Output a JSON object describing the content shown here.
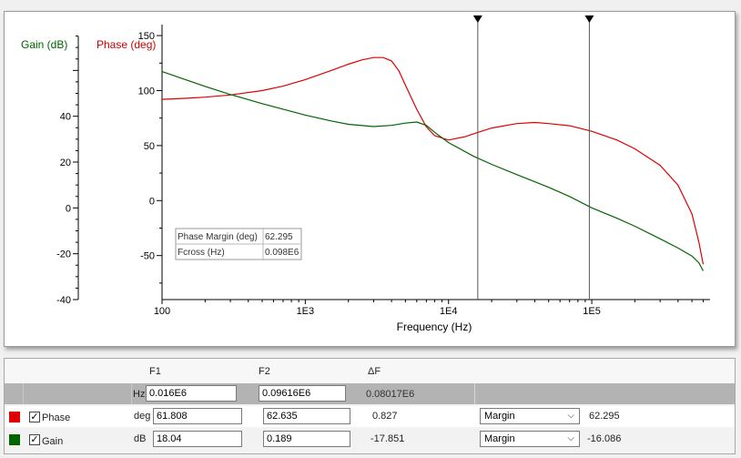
{
  "chart_data": {
    "type": "line",
    "title": "",
    "xlabel": "Frequency (Hz)",
    "x_scale": "log",
    "xlim": [
      100,
      650000
    ],
    "x_ticks": [
      100,
      1000,
      10000,
      100000
    ],
    "x_tick_labels": [
      "100",
      "1E3",
      "1E4",
      "1E5"
    ],
    "axes": {
      "gain": {
        "label": "Gain (dB)",
        "ylim": [
          -40,
          80
        ],
        "ticks": [
          -40,
          -20,
          0,
          20,
          40
        ],
        "color": "#006400"
      },
      "phase": {
        "label": "Phase (deg)",
        "ylim": [
          -90,
          160
        ],
        "ticks": [
          -50,
          0,
          50,
          100,
          150
        ],
        "color": "#cc0000"
      }
    },
    "series": [
      {
        "name": "Phase",
        "axis": "phase",
        "color": "#dd0000",
        "x": [
          100,
          150,
          200,
          300,
          500,
          700,
          1000,
          1500,
          2000,
          2500,
          3000,
          3500,
          4000,
          4500,
          5000,
          6000,
          7000,
          8000,
          10000,
          13000,
          16000,
          20000,
          30000,
          40000,
          50000,
          70000,
          100000,
          150000,
          200000,
          300000,
          400000,
          500000,
          560000,
          600000
        ],
        "y": [
          92,
          93,
          94,
          96,
          100,
          104,
          110,
          118,
          124,
          128,
          130,
          130,
          127,
          118,
          105,
          83,
          67,
          59,
          55,
          58,
          62,
          66,
          70,
          71,
          70,
          68,
          63,
          55,
          47,
          32,
          14,
          -12,
          -38,
          -58
        ]
      },
      {
        "name": "Gain",
        "axis": "gain",
        "color": "#006400",
        "x": [
          100,
          200,
          300,
          500,
          1000,
          1500,
          2000,
          3000,
          4000,
          5000,
          6000,
          7000,
          8000,
          10000,
          15000,
          20000,
          30000,
          50000,
          70000,
          100000,
          150000,
          200000,
          300000,
          400000,
          500000,
          560000,
          600000
        ],
        "y": [
          59.5,
          53,
          49.5,
          45.5,
          40.5,
          38,
          36.5,
          35.5,
          36,
          37,
          37.5,
          36,
          33,
          28.5,
          22.5,
          19,
          14.5,
          9,
          5,
          0,
          -4.5,
          -8,
          -13.5,
          -17.5,
          -21,
          -24,
          -27.5
        ]
      }
    ],
    "cursors": [
      {
        "x": 16000,
        "label": "F1"
      },
      {
        "x": 96160,
        "label": "F2"
      }
    ],
    "annotation": {
      "rows": [
        {
          "label": "Phase Margin (deg)",
          "value": "62.295"
        },
        {
          "label": "Fcross (Hz)",
          "value": "0.098E6"
        }
      ]
    }
  },
  "table": {
    "headers": {
      "f1": "F1",
      "f2": "F2",
      "delta": "ΔF"
    },
    "hz_row": {
      "unit": "Hz",
      "f1": "0.016E6",
      "f2": "0.09616E6",
      "delta": "0.08017E6"
    },
    "rows": [
      {
        "name": "Phase",
        "color": "#dd0000",
        "checked": true,
        "unit": "deg",
        "f1": "61.808",
        "f2": "62.635",
        "delta": "0.827",
        "mode": "Margin",
        "result": "62.295"
      },
      {
        "name": "Gain",
        "color": "#006400",
        "checked": true,
        "unit": "dB",
        "f1": "18.04",
        "f2": "0.189",
        "delta": "-17.851",
        "mode": "Margin",
        "result": "-16.086"
      }
    ]
  }
}
